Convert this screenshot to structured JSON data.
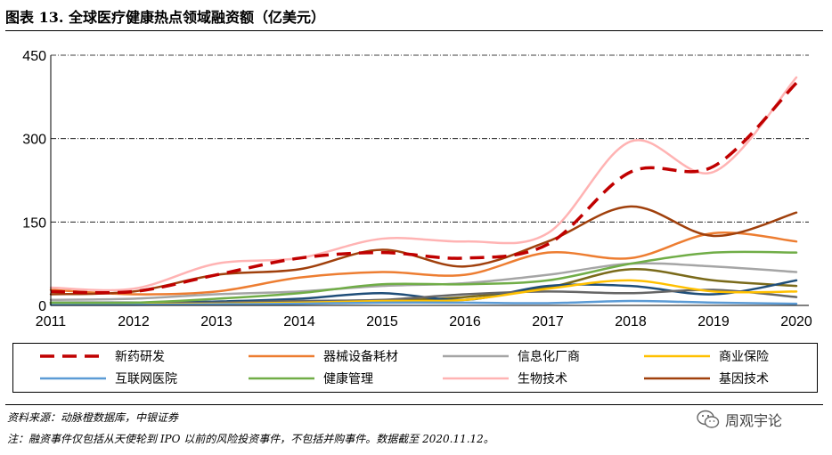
{
  "header": {
    "title": "图表 13. 全球医疗健康热点领域融资额（亿美元）"
  },
  "chart_data": {
    "type": "line",
    "title": "图表 13. 全球医疗健康热点领域融资额（亿美元）",
    "xlabel": "",
    "ylabel": "",
    "categories": [
      "2011",
      "2012",
      "2013",
      "2014",
      "2015",
      "2016",
      "2017",
      "2018",
      "2019",
      "2020"
    ],
    "ylim": [
      0,
      450
    ],
    "yticks": [
      "0",
      "150",
      "300",
      "450"
    ],
    "grid": "horizontal-dashdot",
    "series": [
      {
        "name": "新药研发",
        "color": "#C00000",
        "dash": "dashed",
        "values": [
          25,
          25,
          55,
          85,
          95,
          85,
          110,
          240,
          250,
          400
        ]
      },
      {
        "name": "器械设备耗材",
        "color": "#ED7D31",
        "dash": "solid",
        "values": [
          28,
          20,
          25,
          50,
          60,
          55,
          95,
          85,
          130,
          115
        ]
      },
      {
        "name": "信息化厂商",
        "color": "#A5A5A5",
        "dash": "solid",
        "values": [
          10,
          12,
          20,
          25,
          35,
          40,
          55,
          75,
          70,
          60
        ]
      },
      {
        "name": "商业保险",
        "color": "#FFC000",
        "dash": "solid",
        "values": [
          2,
          2,
          3,
          5,
          8,
          10,
          30,
          45,
          25,
          25
        ]
      },
      {
        "name": "互联网医院",
        "color": "#5B9BD5",
        "dash": "solid",
        "values": [
          1,
          1,
          2,
          3,
          5,
          5,
          4,
          8,
          5,
          3
        ]
      },
      {
        "name": "健康管理",
        "color": "#70AD47",
        "dash": "solid",
        "values": [
          5,
          5,
          12,
          22,
          38,
          38,
          45,
          75,
          95,
          95
        ]
      },
      {
        "name": "生物技术",
        "color": "#FFB3B3",
        "dash": "solid",
        "values": [
          32,
          30,
          75,
          85,
          120,
          115,
          130,
          295,
          240,
          410
        ]
      },
      {
        "name": "基因技术",
        "color": "#A0400C",
        "dash": "solid",
        "values": [
          20,
          25,
          55,
          65,
          100,
          70,
          115,
          178,
          125,
          167
        ]
      },
      {
        "name": "",
        "color": "#7A6A1A",
        "dash": "solid",
        "values": [
          5,
          5,
          5,
          5,
          8,
          15,
          32,
          65,
          45,
          35
        ]
      },
      {
        "name": "",
        "color": "#1F4E79",
        "dash": "solid",
        "values": [
          5,
          5,
          7,
          12,
          22,
          10,
          35,
          35,
          20,
          45
        ]
      },
      {
        "name": "",
        "color": "#666666",
        "dash": "solid",
        "values": [
          3,
          4,
          5,
          8,
          10,
          20,
          25,
          22,
          28,
          15
        ]
      }
    ]
  },
  "legend": {
    "items": [
      {
        "label": "新药研发",
        "color": "#C00000",
        "dash": "dashed"
      },
      {
        "label": "器械设备耗材",
        "color": "#ED7D31",
        "dash": "solid"
      },
      {
        "label": "信息化厂商",
        "color": "#A5A5A5",
        "dash": "solid"
      },
      {
        "label": "商业保险",
        "color": "#FFC000",
        "dash": "solid"
      },
      {
        "label": "互联网医院",
        "color": "#5B9BD5",
        "dash": "solid"
      },
      {
        "label": "健康管理",
        "color": "#70AD47",
        "dash": "solid"
      },
      {
        "label": "生物技术",
        "color": "#FFB3B3",
        "dash": "solid"
      },
      {
        "label": "基因技术",
        "color": "#A0400C",
        "dash": "solid"
      }
    ]
  },
  "footer": {
    "source": "资料来源：动脉橙数据库，中银证券",
    "note": "注：融资事件仅包括从天使轮到 IPO 以前的风险投资事件，不包括并购事件。数据截至 2020.11.12。"
  },
  "watermark": {
    "text": "周观宇论",
    "icon": "wechat-icon"
  }
}
